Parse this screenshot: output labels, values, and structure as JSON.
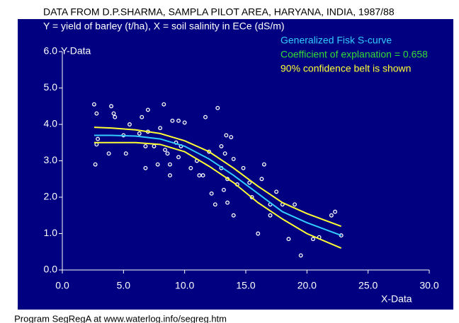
{
  "chart_data": {
    "type": "scatter",
    "title": "DATA FROM D.P.SHARMA, SAMPLA PILOT AREA, HARYANA, INDIA, 1987/88",
    "subtitle": "Y = yield of barley (t/ha), X = soil salinity in ECe (dS/m)",
    "xlabel": "X-Data",
    "ylabel": "Y-Data",
    "footer": "Program SegRegA at www.waterlog.info/segreg.htm",
    "xlim": [
      0,
      30
    ],
    "ylim": [
      0,
      6
    ],
    "xticks": [
      {
        "value": 0,
        "label": "0.0"
      },
      {
        "value": 5,
        "label": "5.0"
      },
      {
        "value": 10,
        "label": "10.0"
      },
      {
        "value": 15,
        "label": "15.0"
      },
      {
        "value": 20,
        "label": "20.0"
      },
      {
        "value": 25,
        "label": "25.0"
      },
      {
        "value": 30,
        "label": "30.0"
      }
    ],
    "yticks": [
      {
        "value": 0,
        "label": "0.0"
      },
      {
        "value": 1,
        "label": "1.0"
      },
      {
        "value": 2,
        "label": "2.0"
      },
      {
        "value": 3,
        "label": "3.0"
      },
      {
        "value": 4,
        "label": "4.0"
      },
      {
        "value": 5,
        "label": "5.0"
      },
      {
        "value": 6,
        "label": "6.0"
      }
    ],
    "background": "#000080",
    "annotations": [
      {
        "text": "Generalized Fisk S-curve",
        "color": "#33ccff"
      },
      {
        "text": "Coefficient of explanation = 0.658",
        "color": "#33dd33"
      },
      {
        "text": "90% confidence belt is shown",
        "color": "#ffff33"
      }
    ],
    "series": [
      {
        "kind": "points",
        "color": "#ffffff",
        "x": [
          2.6,
          2.8,
          2.7,
          2.9,
          2.8,
          4.0,
          4.2,
          4.3,
          3.8,
          5.0,
          5.2,
          5.5,
          6.3,
          6.5,
          6.8,
          6.8,
          7.0,
          7.0,
          7.5,
          7.8,
          8.0,
          8.3,
          8.4,
          8.6,
          8.8,
          8.8,
          9.0,
          9.3,
          9.5,
          9.5,
          9.7,
          10.0,
          10.5,
          11.0,
          11.2,
          11.5,
          11.7,
          12.0,
          12.2,
          12.5,
          12.7,
          13.0,
          13.0,
          13.3,
          13.2,
          13.4,
          13.5,
          13.8,
          13.5,
          14.0,
          14.3,
          14.0,
          14.8,
          15.3,
          15.5,
          16.0,
          16.3,
          16.5,
          17.0,
          17.0,
          17.5,
          18.0,
          18.5,
          19.0,
          19.5,
          20.5,
          21.0,
          22.0,
          22.3,
          22.8
        ],
        "values": [
          4.55,
          4.3,
          2.9,
          3.6,
          3.45,
          4.5,
          4.3,
          4.2,
          3.2,
          3.7,
          3.2,
          4.0,
          3.75,
          4.2,
          3.4,
          2.8,
          4.4,
          3.8,
          3.4,
          2.9,
          3.9,
          4.55,
          3.3,
          3.2,
          2.6,
          2.9,
          4.1,
          3.5,
          4.1,
          3.1,
          3.4,
          4.05,
          2.8,
          3.0,
          2.6,
          2.6,
          4.2,
          3.25,
          2.1,
          1.8,
          4.45,
          2.8,
          3.4,
          3.2,
          2.2,
          3.7,
          2.5,
          3.65,
          1.85,
          3.05,
          2.35,
          1.5,
          2.8,
          2.4,
          2.0,
          1.0,
          2.5,
          2.9,
          1.5,
          1.8,
          2.15,
          1.8,
          0.85,
          1.8,
          0.4,
          0.85,
          0.9,
          1.5,
          1.6,
          0.95
        ]
      },
      {
        "kind": "line",
        "color": "#33ccff",
        "x": [
          2.6,
          4,
          6,
          8,
          10,
          12,
          14,
          16,
          18,
          20,
          22.8
        ],
        "values": [
          3.7,
          3.7,
          3.68,
          3.6,
          3.4,
          3.05,
          2.6,
          2.1,
          1.6,
          1.3,
          0.95
        ]
      },
      {
        "kind": "line",
        "color": "#ffff33",
        "x": [
          2.6,
          4,
          6,
          8,
          10,
          12,
          14,
          16,
          18,
          20,
          22.8
        ],
        "values": [
          3.92,
          3.9,
          3.85,
          3.75,
          3.55,
          3.25,
          2.8,
          2.3,
          1.85,
          1.55,
          1.2
        ]
      },
      {
        "kind": "line",
        "color": "#ffff33",
        "x": [
          2.6,
          4,
          6,
          8,
          10,
          12,
          14,
          16,
          18,
          20,
          22.8
        ],
        "values": [
          3.5,
          3.5,
          3.5,
          3.45,
          3.25,
          2.85,
          2.4,
          1.85,
          1.4,
          1.0,
          0.6
        ]
      }
    ]
  }
}
